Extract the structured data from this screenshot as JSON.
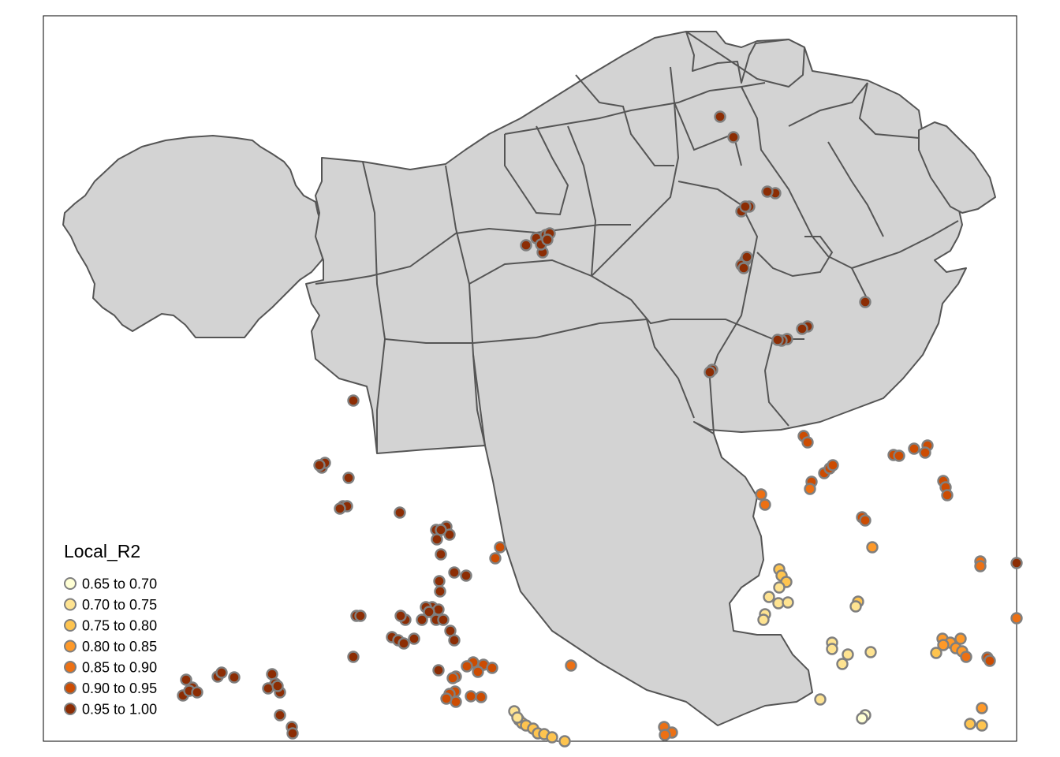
{
  "legend": {
    "title": "Local_R2",
    "classes": [
      {
        "label": "0.65 to 0.70",
        "color": "#ffffd4"
      },
      {
        "label": "0.70 to 0.75",
        "color": "#fee391"
      },
      {
        "label": "0.75 to 0.80",
        "color": "#fec44f"
      },
      {
        "label": "0.80 to 0.85",
        "color": "#fe9929"
      },
      {
        "label": "0.85 to 0.90",
        "color": "#ec7014"
      },
      {
        "label": "0.90 to 0.95",
        "color": "#cc4c02"
      },
      {
        "label": "0.95 to 1.00",
        "color": "#8c2d04"
      }
    ]
  },
  "colors": {
    "land": "#d3d3d3",
    "border": "#555555",
    "point_outline": "#7f7f7f",
    "frame": "#000000"
  }
}
